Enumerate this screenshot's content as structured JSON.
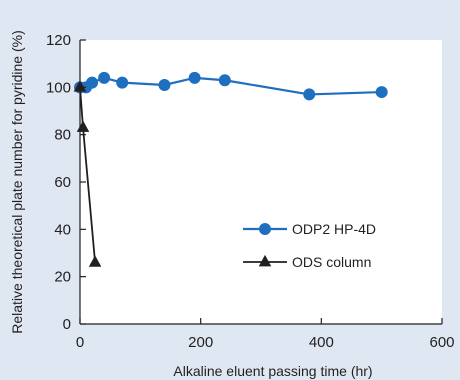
{
  "chart_data": {
    "type": "line",
    "title": "",
    "xlabel": "Alkaline eluent passing time (hr)",
    "ylabel": "Relative theoretical plate number for pyridine (%)",
    "xlim": [
      0,
      600
    ],
    "ylim": [
      0,
      120
    ],
    "xticks": [
      "0",
      "200",
      "400",
      "600"
    ],
    "yticks": [
      "0",
      "20",
      "40",
      "60",
      "80",
      "100",
      "120"
    ],
    "grid": false,
    "legend_position": "right",
    "series": [
      {
        "name": "ODP2 HP-4D",
        "color": "#1f6fbf",
        "marker": "circle",
        "x": [
          0,
          10,
          20,
          40,
          70,
          140,
          190,
          240,
          380,
          500
        ],
        "y": [
          100,
          100,
          102,
          104,
          102,
          101,
          104,
          103,
          97,
          98
        ]
      },
      {
        "name": "ODS column",
        "color": "#231f20",
        "marker": "triangle",
        "x": [
          0,
          5,
          25
        ],
        "y": [
          100,
          83,
          26
        ]
      }
    ]
  }
}
